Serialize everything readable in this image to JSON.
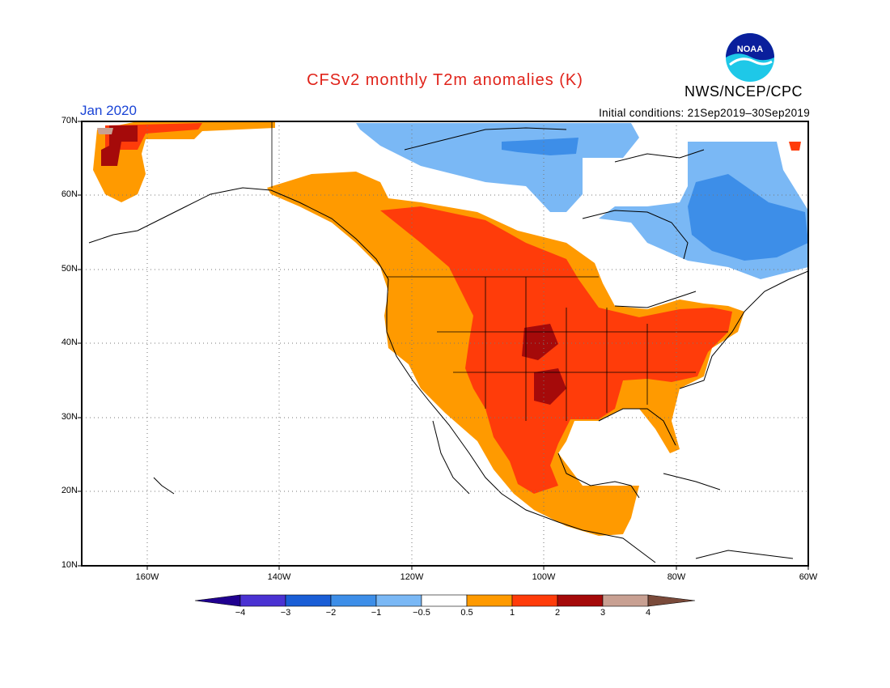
{
  "header": {
    "title": "CFSv2 monthly T2m anomalies (K)",
    "agency": "NWS/NCEP/CPC",
    "month": "Jan 2020",
    "initial_conditions": "Initial conditions: 21Sep2019–30Sep2019"
  },
  "logo": {
    "icon": "noaa-logo-icon",
    "text": "NOAA"
  },
  "map": {
    "lat_labels": [
      "70N",
      "60N",
      "50N",
      "40N",
      "30N",
      "20N",
      "10N"
    ],
    "lon_labels": [
      "160W",
      "140W",
      "120W",
      "100W",
      "80W",
      "60W"
    ],
    "lat_range": [
      10,
      70
    ],
    "lon_range": [
      -170,
      -60
    ],
    "gridlines": true
  },
  "colorbar": {
    "labels": [
      "−4",
      "−3",
      "−2",
      "−1",
      "−0.5",
      "0.5",
      "1",
      "2",
      "3",
      "4"
    ],
    "colors": {
      "below_-4": "#200090",
      "-4_-3": "#4a32d2",
      "-3_-2": "#1a5ed6",
      "-2_-1": "#3d8ee8",
      "-1_-0.5": "#7ab8f5",
      "-0.5_0.5": "#ffffff",
      "0.5_1": "#ff9a00",
      "1_2": "#ff3c0a",
      "2_3": "#a50a0a",
      "3_4": "#c8a092",
      "above_4": "#7a4a3a"
    }
  }
}
